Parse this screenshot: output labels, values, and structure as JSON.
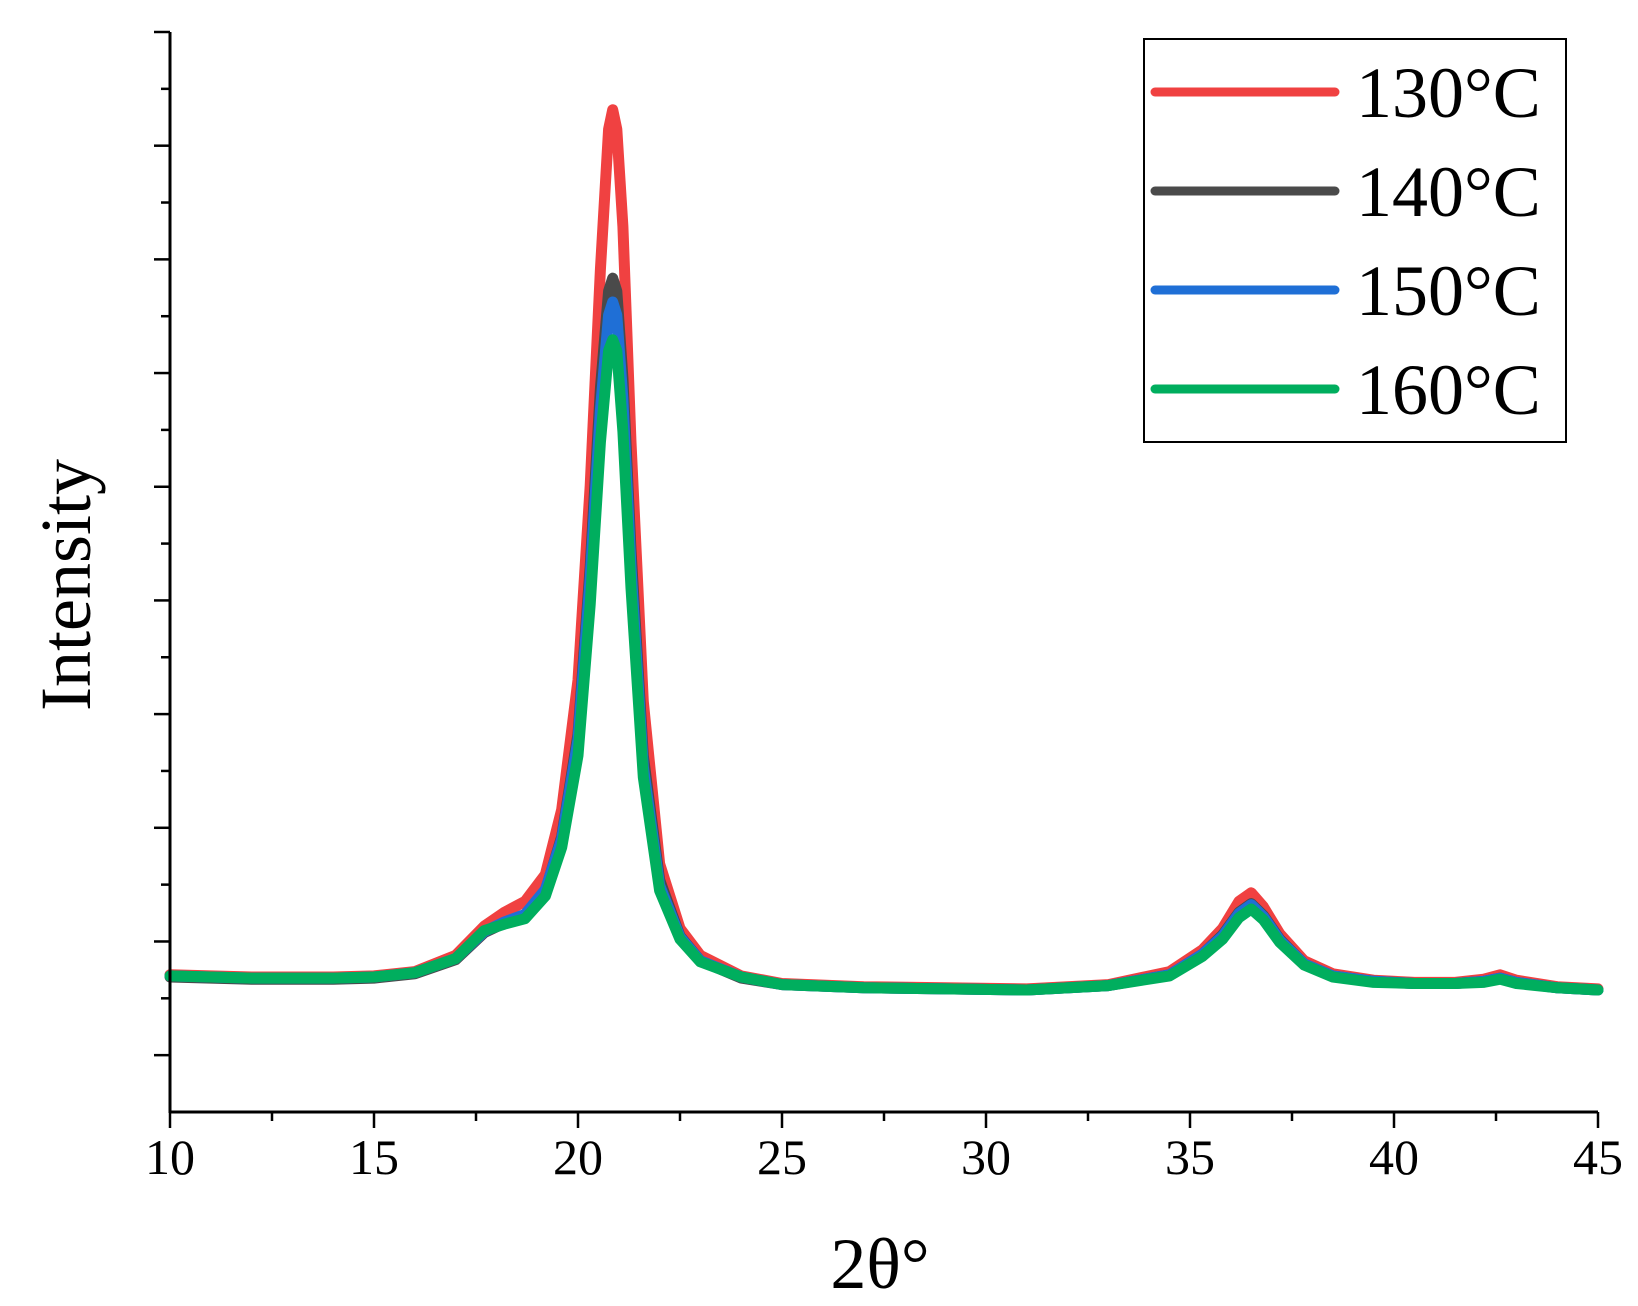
{
  "chart_data": {
    "type": "line",
    "title": "",
    "xlabel": "2θ°",
    "ylabel": "Intensity",
    "xlim": [
      10,
      45
    ],
    "ylim": [
      0,
      100
    ],
    "x_ticks": [
      10,
      15,
      20,
      25,
      30,
      35,
      40,
      45
    ],
    "x_tick_labels": [
      "10",
      "15",
      "20",
      "25",
      "30",
      "35",
      "40",
      "45"
    ],
    "y_tick_labels_shown": false,
    "grid": false,
    "legend": "top-right",
    "series": [
      {
        "name": "130°C",
        "color": "#f04141",
        "x": [
          10,
          12,
          14,
          15,
          16,
          17,
          17.7,
          18.2,
          18.7,
          19.2,
          19.6,
          20.0,
          20.3,
          20.55,
          20.75,
          20.85,
          20.95,
          21.1,
          21.3,
          21.6,
          22.0,
          22.5,
          23,
          24,
          25,
          27,
          29,
          31,
          33,
          34.5,
          35.3,
          35.8,
          36.2,
          36.5,
          36.8,
          37.2,
          37.8,
          38.5,
          39.5,
          40.5,
          41.5,
          42.2,
          42.6,
          43.0,
          44,
          45
        ],
        "y": [
          12.7,
          12.5,
          12.5,
          12.6,
          13.0,
          14.5,
          17.2,
          18.5,
          19.5,
          22.0,
          28.0,
          40.0,
          58.0,
          78.0,
          91.0,
          92.8,
          91.0,
          82.0,
          62.0,
          38.0,
          23.0,
          17.0,
          14.5,
          12.6,
          11.9,
          11.6,
          11.5,
          11.4,
          11.8,
          13.0,
          15.0,
          17.0,
          19.5,
          20.3,
          19.0,
          16.5,
          14.0,
          12.8,
          12.2,
          12.0,
          12.0,
          12.3,
          12.7,
          12.2,
          11.6,
          11.4
        ]
      },
      {
        "name": "140°C",
        "color": "#4a4a4a",
        "x": [
          10,
          12,
          14,
          15,
          16,
          17,
          17.7,
          18.2,
          18.7,
          19.2,
          19.6,
          20.0,
          20.3,
          20.55,
          20.75,
          20.85,
          20.95,
          21.1,
          21.3,
          21.6,
          22.0,
          22.5,
          23,
          24,
          25,
          27,
          29,
          31,
          33,
          34.5,
          35.3,
          35.8,
          36.2,
          36.5,
          36.8,
          37.2,
          37.8,
          38.5,
          39.5,
          40.5,
          41.5,
          42.2,
          42.6,
          43.0,
          44,
          45
        ],
        "y": [
          12.5,
          12.3,
          12.3,
          12.4,
          12.8,
          14.1,
          16.6,
          17.5,
          18.2,
          20.5,
          25.5,
          35.0,
          50.5,
          67.0,
          76.0,
          77.2,
          76.0,
          68.0,
          52.0,
          33.0,
          21.5,
          16.3,
          14.0,
          12.4,
          11.8,
          11.5,
          11.4,
          11.3,
          11.7,
          12.7,
          14.6,
          16.4,
          18.5,
          19.3,
          18.2,
          16.0,
          13.7,
          12.6,
          12.1,
          11.9,
          11.9,
          12.1,
          12.4,
          12.0,
          11.5,
          11.3
        ]
      },
      {
        "name": "150°C",
        "color": "#1f6fd6",
        "x": [
          10,
          12,
          14,
          15,
          16,
          17,
          17.7,
          18.2,
          18.7,
          19.2,
          19.6,
          20.0,
          20.3,
          20.55,
          20.75,
          20.85,
          20.95,
          21.1,
          21.3,
          21.6,
          22.0,
          22.5,
          23,
          24,
          25,
          27,
          29,
          31,
          33,
          34.5,
          35.3,
          35.8,
          36.2,
          36.5,
          36.8,
          37.2,
          37.8,
          38.5,
          39.5,
          40.5,
          41.5,
          42.2,
          42.6,
          43.0,
          44,
          45
        ],
        "y": [
          12.6,
          12.4,
          12.4,
          12.5,
          12.9,
          14.2,
          16.7,
          17.6,
          18.3,
          20.6,
          25.3,
          34.5,
          49.5,
          65.0,
          73.8,
          75.0,
          73.8,
          66.0,
          50.5,
          32.0,
          21.0,
          16.2,
          14.0,
          12.5,
          11.8,
          11.5,
          11.4,
          11.3,
          11.7,
          12.7,
          14.6,
          16.3,
          18.4,
          19.2,
          18.1,
          15.9,
          13.7,
          12.6,
          12.1,
          11.9,
          11.9,
          12.1,
          12.4,
          12.0,
          11.5,
          11.3
        ]
      },
      {
        "name": "160°C",
        "color": "#00ae5e",
        "x": [
          10,
          12,
          14,
          15,
          16,
          17,
          17.7,
          18.2,
          18.7,
          19.2,
          19.6,
          20.0,
          20.3,
          20.55,
          20.75,
          20.85,
          20.95,
          21.1,
          21.3,
          21.6,
          22.0,
          22.5,
          23,
          24,
          25,
          27,
          29,
          31,
          33,
          34.5,
          35.3,
          35.8,
          36.2,
          36.5,
          36.8,
          37.2,
          37.8,
          38.5,
          39.5,
          40.5,
          41.5,
          42.2,
          42.6,
          43.0,
          44,
          45
        ],
        "y": [
          12.6,
          12.4,
          12.4,
          12.5,
          12.9,
          14.2,
          16.8,
          17.4,
          17.9,
          20.0,
          24.5,
          33.0,
          47.0,
          62.0,
          70.5,
          71.5,
          70.5,
          63.0,
          48.5,
          31.0,
          20.5,
          16.0,
          13.9,
          12.5,
          11.8,
          11.5,
          11.4,
          11.3,
          11.7,
          12.6,
          14.4,
          16.0,
          18.0,
          18.8,
          17.8,
          15.7,
          13.6,
          12.5,
          12.0,
          11.9,
          11.9,
          12.0,
          12.3,
          11.9,
          11.5,
          11.3
        ]
      }
    ]
  }
}
